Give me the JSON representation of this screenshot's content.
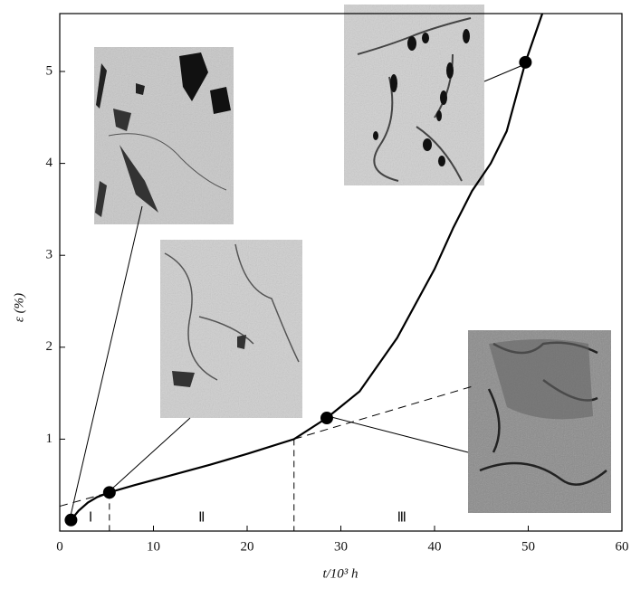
{
  "chart_data": {
    "type": "line",
    "xlabel": "t/10³ h",
    "ylabel": "ε (%)",
    "xlim": [
      0,
      60
    ],
    "ylim": [
      0,
      5.63
    ],
    "xticks": [
      0,
      10,
      20,
      30,
      40,
      50,
      60
    ],
    "yticks": [
      1,
      2,
      3,
      4,
      5
    ],
    "x": [
      1.2,
      2,
      3,
      4,
      5.3,
      8,
      12,
      16,
      20,
      25,
      28.5,
      32,
      36,
      40,
      42,
      44,
      46,
      47.7,
      49.7,
      51.5
    ],
    "series": [
      {
        "color": "#000000",
        "values": [
          0.12,
          0.22,
          0.31,
          0.37,
          0.42,
          0.5,
          0.61,
          0.72,
          0.84,
          1.0,
          1.23,
          1.52,
          2.1,
          2.85,
          3.3,
          3.7,
          4.0,
          4.35,
          5.1,
          5.63
        ]
      }
    ],
    "points": {
      "x": [
        1.2,
        5.3,
        28.5,
        49.7
      ],
      "values": [
        0.12,
        0.42,
        1.23,
        5.1
      ]
    },
    "stage_boundaries": [
      5.3,
      25
    ],
    "stage_labels": [
      "Ⅰ",
      "Ⅱ",
      "Ⅲ"
    ]
  }
}
